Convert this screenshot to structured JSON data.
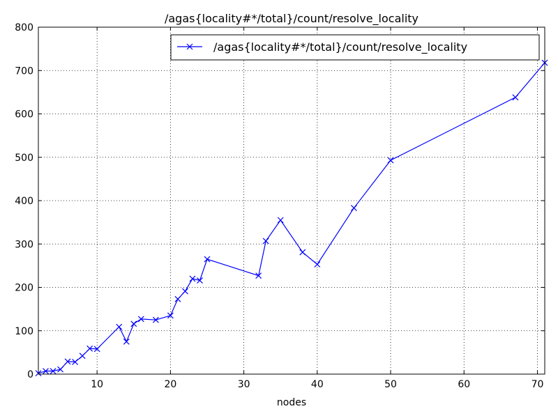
{
  "chart_data": {
    "type": "line",
    "title": "/agas{locality#*/total}/count/resolve_locality",
    "xlabel": "nodes",
    "ylabel": "",
    "xlim": [
      2,
      71
    ],
    "ylim": [
      0,
      800
    ],
    "xticks": [
      10,
      20,
      30,
      40,
      50,
      60,
      70
    ],
    "yticks": [
      0,
      100,
      200,
      300,
      400,
      500,
      600,
      700,
      800
    ],
    "grid": true,
    "legend_position": "top-right",
    "series": [
      {
        "name": "/agas{locality#*/total}/count/resolve_locality",
        "color": "#0000ff",
        "marker": "x",
        "x": [
          2,
          3,
          4,
          5,
          6,
          7,
          8,
          9,
          10,
          13,
          14,
          15,
          16,
          18,
          20,
          21,
          22,
          23,
          24,
          25,
          32,
          33,
          35,
          38,
          40,
          45,
          50,
          67,
          71
        ],
        "y": [
          2,
          7,
          7,
          11,
          29,
          28,
          42,
          59,
          58,
          109,
          75,
          116,
          127,
          125,
          135,
          173,
          191,
          220,
          216,
          265,
          227,
          307,
          355,
          281,
          253,
          383,
          493,
          638,
          718
        ]
      }
    ]
  }
}
